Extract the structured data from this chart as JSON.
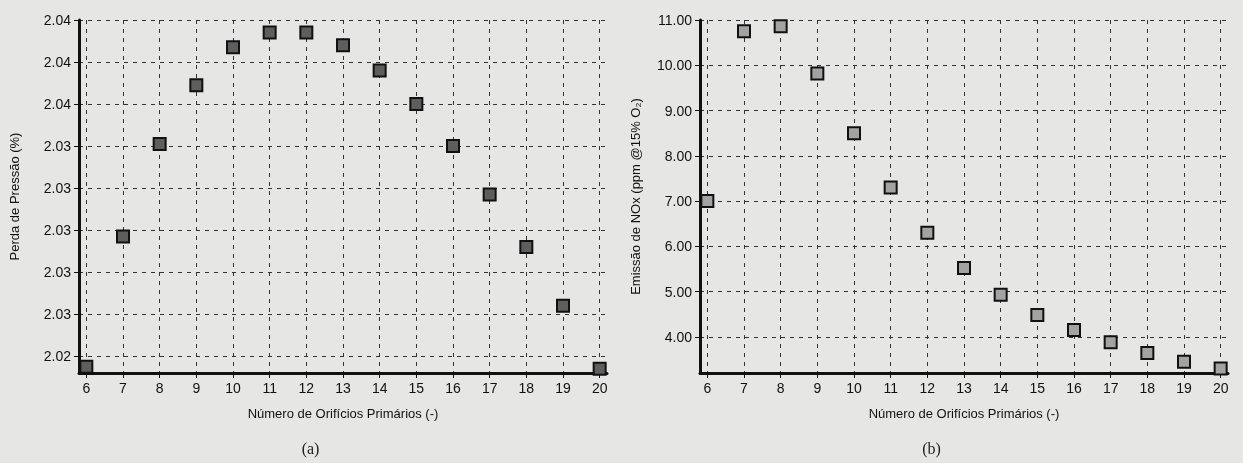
{
  "chart_data": [
    {
      "type": "scatter",
      "xlabel": "Número de Orifícios Primários (-)",
      "ylabel": "Perda de Pressão (%)",
      "annotations": [
        "(a)"
      ],
      "x": [
        6,
        7,
        8,
        9,
        10,
        11,
        12,
        13,
        14,
        15,
        16,
        17,
        18,
        19,
        20
      ],
      "series": [
        {
          "color": "#5e5e5e",
          "values": [
            2.0235,
            2.0297,
            2.0341,
            2.0369,
            2.0387,
            2.0394,
            2.0394,
            2.0388,
            2.0376,
            2.036,
            2.034,
            2.0317,
            2.0292,
            2.0264,
            2.0234
          ]
        }
      ],
      "xlim": [
        5.8,
        20.2
      ],
      "xticks": [
        6,
        7,
        8,
        9,
        10,
        11,
        12,
        13,
        14,
        15,
        16,
        17,
        18,
        19,
        20
      ],
      "ylim": [
        2.0232,
        2.04
      ],
      "yticks": [
        {
          "value": 2.024,
          "label": "2.02"
        },
        {
          "value": 2.026,
          "label": "2.03"
        },
        {
          "value": 2.028,
          "label": "2.03"
        },
        {
          "value": 2.03,
          "label": "2.03"
        },
        {
          "value": 2.032,
          "label": "2.03"
        },
        {
          "value": 2.034,
          "label": "2.03"
        },
        {
          "value": 2.036,
          "label": "2.04"
        },
        {
          "value": 2.038,
          "label": "2.04"
        },
        {
          "value": 2.04,
          "label": "2.04"
        }
      ],
      "grid": true,
      "marker": "square"
    },
    {
      "type": "scatter",
      "xlabel": "Número de Orifícios Primários (-)",
      "ylabel": "Emissão de NOx (ppm @15% O₂)",
      "annotations": [
        "(b)"
      ],
      "x": [
        6,
        7,
        8,
        9,
        10,
        11,
        12,
        13,
        14,
        15,
        16,
        17,
        18,
        19,
        20
      ],
      "series": [
        {
          "color": "#a3a3a3",
          "values": [
            7.0,
            10.75,
            10.86,
            9.82,
            8.5,
            7.3,
            6.3,
            5.52,
            4.93,
            4.48,
            4.15,
            3.88,
            3.64,
            3.45,
            3.3
          ]
        }
      ],
      "xlim": [
        5.8,
        20.2
      ],
      "xticks": [
        6,
        7,
        8,
        9,
        10,
        11,
        12,
        13,
        14,
        15,
        16,
        17,
        18,
        19,
        20
      ],
      "ylim": [
        3.2,
        11
      ],
      "yticks": [
        {
          "value": 4,
          "label": "4.00"
        },
        {
          "value": 5,
          "label": "5.00"
        },
        {
          "value": 6,
          "label": "6.00"
        },
        {
          "value": 7,
          "label": "7.00"
        },
        {
          "value": 8,
          "label": "8.00"
        },
        {
          "value": 9,
          "label": "9.00"
        },
        {
          "value": 10,
          "label": "10.00"
        },
        {
          "value": 11,
          "label": "11.00"
        }
      ],
      "grid": true,
      "marker": "square"
    }
  ]
}
